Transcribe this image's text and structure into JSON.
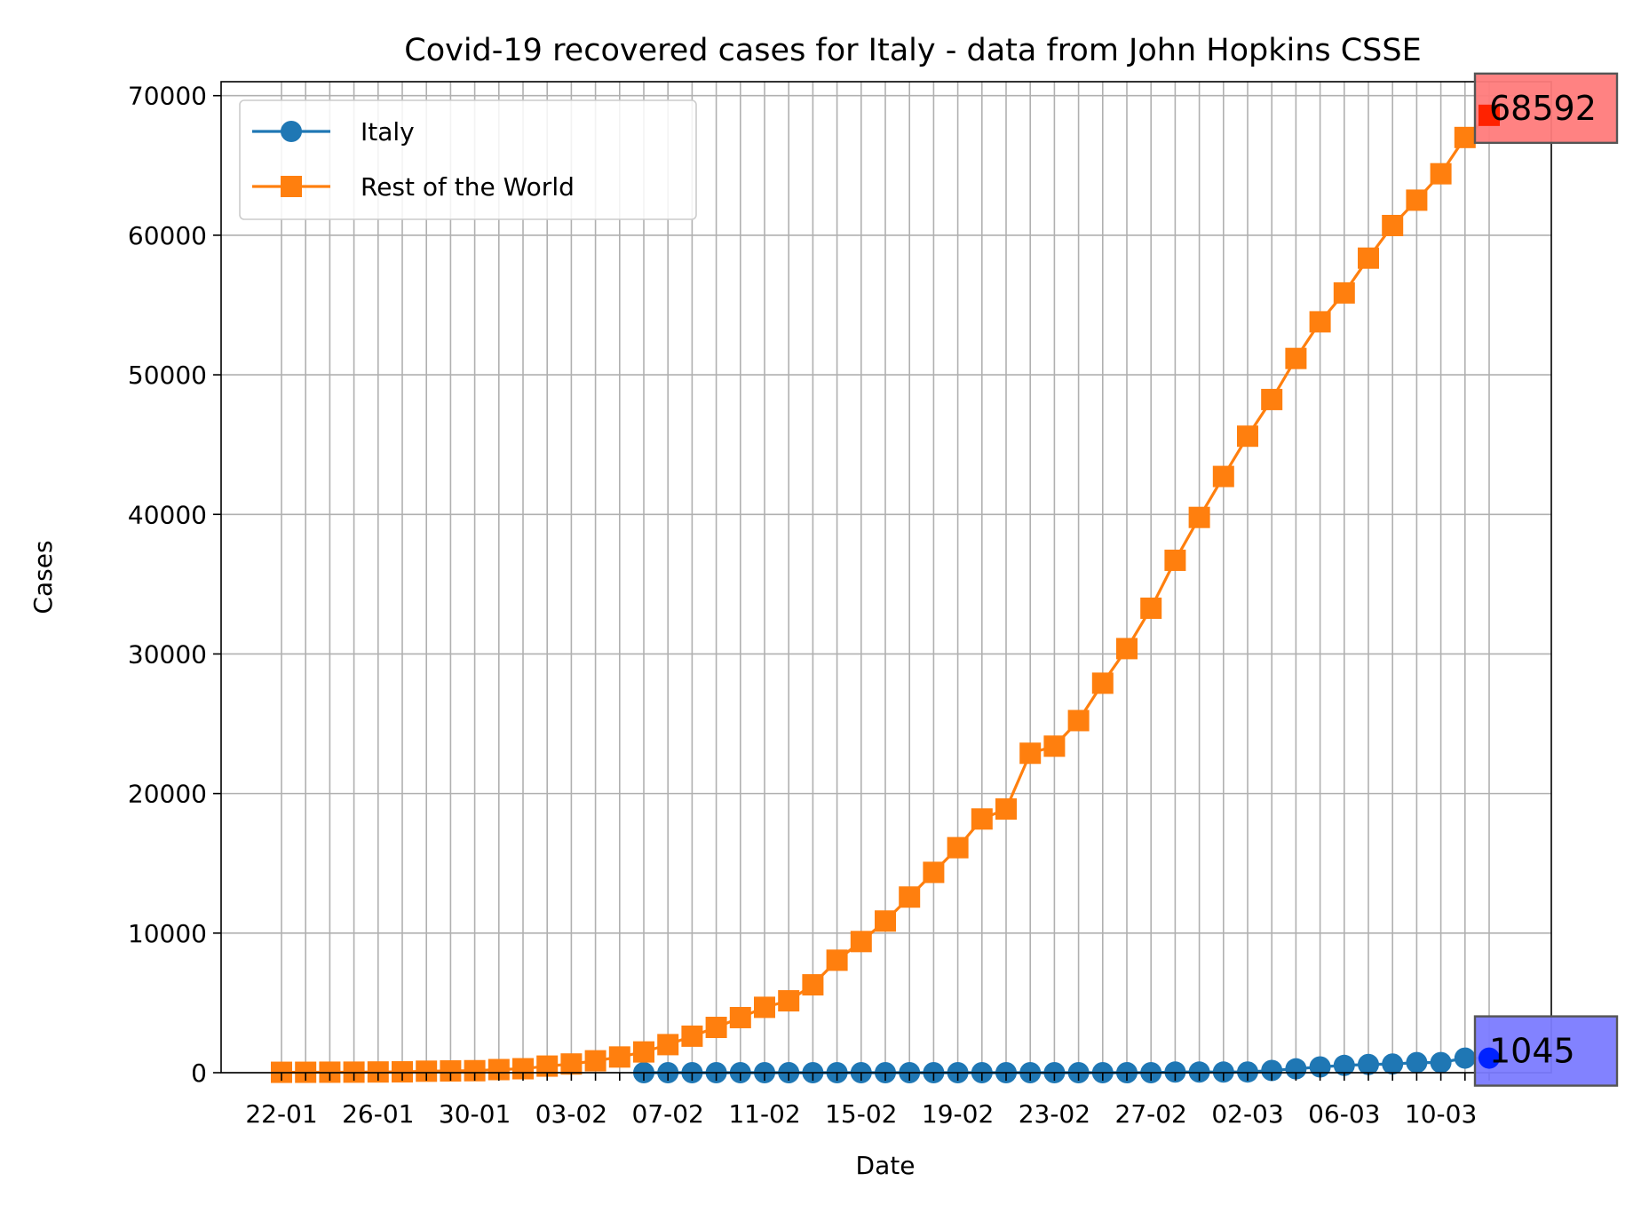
{
  "chart_data": {
    "type": "line",
    "title": "Covid-19 recovered cases for Italy - data from John Hopkins CSSE",
    "xlabel": "Date",
    "ylabel": "Cases",
    "ylim": [
      0,
      71000
    ],
    "yticks": [
      0,
      10000,
      20000,
      30000,
      40000,
      50000,
      60000,
      70000
    ],
    "grid": true,
    "legend_position": "top-left",
    "x": [
      "22-01",
      "23-01",
      "24-01",
      "25-01",
      "26-01",
      "27-01",
      "28-01",
      "29-01",
      "30-01",
      "31-01",
      "01-02",
      "02-02",
      "03-02",
      "04-02",
      "05-02",
      "06-02",
      "07-02",
      "08-02",
      "09-02",
      "10-02",
      "11-02",
      "12-02",
      "13-02",
      "14-02",
      "15-02",
      "16-02",
      "17-02",
      "18-02",
      "19-02",
      "20-02",
      "21-02",
      "22-02",
      "23-02",
      "24-02",
      "25-02",
      "26-02",
      "27-02",
      "28-02",
      "29-02",
      "01-03",
      "02-03",
      "03-03",
      "04-03",
      "05-03",
      "06-03",
      "07-03",
      "08-03",
      "09-03",
      "10-03",
      "11-03",
      "12-03"
    ],
    "xtick_labels": [
      "22-01",
      "26-01",
      "30-01",
      "03-02",
      "07-02",
      "11-02",
      "15-02",
      "19-02",
      "23-02",
      "27-02",
      "02-03",
      "06-03",
      "10-03"
    ],
    "series": [
      {
        "name": "Italy",
        "color": "#1f77b4",
        "marker": "circle",
        "values": [
          null,
          null,
          null,
          null,
          null,
          null,
          null,
          null,
          null,
          null,
          null,
          null,
          null,
          null,
          null,
          0,
          0,
          0,
          0,
          0,
          0,
          0,
          0,
          0,
          0,
          0,
          0,
          0,
          0,
          0,
          0,
          0,
          0,
          0,
          0,
          0,
          0,
          46,
          46,
          46,
          50,
          160,
          276,
          414,
          523,
          589,
          622,
          724,
          724,
          1045,
          1045
        ]
      },
      {
        "name": "Rest of the World",
        "color": "#ff7f0e",
        "marker": "square",
        "values": [
          28,
          30,
          36,
          39,
          52,
          61,
          107,
          126,
          143,
          222,
          284,
          472,
          623,
          852,
          1124,
          1487,
          2011,
          2616,
          3244,
          3946,
          4683,
          5150,
          6295,
          8058,
          9395,
          10865,
          12583,
          14352,
          16121,
          18177,
          18890,
          22886,
          23394,
          25227,
          27905,
          30384,
          33277,
          36711,
          39782,
          42716,
          45602,
          48229,
          51171,
          53797,
          55866,
          58359,
          60695,
          62512,
          64404,
          67003,
          68592
        ]
      }
    ],
    "annotations": [
      {
        "text": "68592",
        "box_color": "#ff7b7b",
        "point_color": "#ff2200"
      },
      {
        "text": "1045",
        "box_color": "#7b7bff",
        "point_color": "#0022ff"
      }
    ]
  }
}
